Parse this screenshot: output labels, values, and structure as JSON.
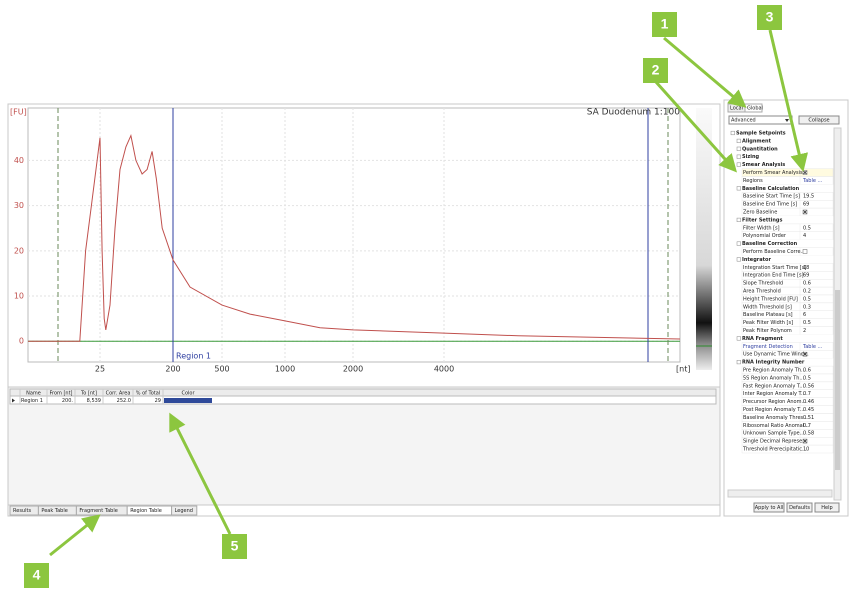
{
  "chart": {
    "type": "line",
    "title": "SA Duodenum 1:100",
    "ylabel": "[FU]",
    "xlabel": "[nt]",
    "annotation": "Region 1",
    "x": [
      0,
      18,
      20,
      22,
      25,
      30,
      35,
      39,
      49,
      61,
      73,
      87,
      99,
      111,
      126,
      138,
      150,
      160,
      174,
      200,
      304,
      500,
      722,
      1000,
      1515,
      2000,
      4000,
      6000,
      10380
    ],
    "values": [
      0,
      0,
      20,
      30,
      45,
      20,
      5,
      2.5,
      8,
      25,
      38,
      43,
      45.5,
      40,
      37,
      38,
      42,
      36,
      25,
      18,
      12,
      8,
      6,
      4.5,
      3,
      2.5,
      1.8,
      1.2,
      0.5
    ],
    "color": "#c0504d",
    "xlim": [
      0,
      10380
    ],
    "xticks": [
      25,
      200,
      500,
      1000,
      2000,
      4000
    ],
    "ylim": [
      -4.6,
      51.6
    ],
    "yticks": [
      0,
      10,
      20,
      30,
      40
    ],
    "grid": true
  },
  "region_table": {
    "columns": [
      "Name",
      "From [nt]",
      "To [nt]",
      "Corr. Area",
      "% of Total",
      "Color"
    ],
    "rows": [
      [
        "Region 1",
        "200.",
        "8,539",
        "252.0",
        "29"
      ]
    ],
    "row_color": "#2f4a9a"
  },
  "tabs": [
    "Results",
    "Peak Table",
    "Fragment Table",
    "Region Table",
    "Legend"
  ],
  "panel": {
    "tabs": [
      "Local",
      "Global"
    ],
    "dropdown": "Advanced",
    "collapse": "Collapse",
    "rows": [
      {
        "label": "Sample Setpoints",
        "heading": true
      },
      {
        "label": "Alignment",
        "heading": true
      },
      {
        "label": "Quantitation",
        "heading": true
      },
      {
        "label": "Sizing",
        "heading": true
      },
      {
        "label": "Smear Analysis",
        "heading": true
      },
      {
        "label": "Perform Smear Analysis",
        "checked": true
      },
      {
        "label": "Regions",
        "value": "Table ..."
      },
      {
        "label": "Baseline Calculation",
        "heading": true
      },
      {
        "label": "Baseline Start Time [s]",
        "value": "19.5"
      },
      {
        "label": "Baseline End Time [s]",
        "value": "69"
      },
      {
        "label": "Zero Baseline",
        "checked": true
      },
      {
        "label": "Filter Settings",
        "heading": true
      },
      {
        "label": "Filter Width [s]",
        "value": "0.5"
      },
      {
        "label": "Polynomial Order",
        "value": "4"
      },
      {
        "label": "Baseline Correction",
        "heading": true
      },
      {
        "label": "Perform Baseline Corre...",
        "checked": false
      },
      {
        "label": "Integrator",
        "heading": true
      },
      {
        "label": "Integration Start Time [s]",
        "value": "18"
      },
      {
        "label": "Integration End Time [s]",
        "value": "69"
      },
      {
        "label": "Slope Threshold",
        "value": "0.6"
      },
      {
        "label": "Area Threshold",
        "value": "0.2"
      },
      {
        "label": "Height Threshold [FU]",
        "value": "0.5"
      },
      {
        "label": "Width Threshold [s]",
        "value": "0.3"
      },
      {
        "label": "Baseline Plateau [s]",
        "value": "6"
      },
      {
        "label": "Peak Filter Width [s]",
        "value": "0.5"
      },
      {
        "label": "Peak Filter Polynom",
        "value": "2"
      },
      {
        "label": "RNA Fragment",
        "heading": true
      },
      {
        "label": "Fragment Detection",
        "value": "Table ..."
      },
      {
        "label": "Use Dynamic Time Wind...",
        "checked": true
      },
      {
        "label": "RNA Integrity Number",
        "heading": true
      },
      {
        "label": "Pre Region Anomaly Th...",
        "value": "0.6"
      },
      {
        "label": "5S Region Anomaly Th...",
        "value": "0.5"
      },
      {
        "label": "Fast Region Anomaly T...",
        "value": "0.56"
      },
      {
        "label": "Inter Region Anomaly T...",
        "value": "0.7"
      },
      {
        "label": "Precursor Region Anom...",
        "value": "0.46"
      },
      {
        "label": "Post Region Anomaly T...",
        "value": "0.45"
      },
      {
        "label": "Baseline Anomaly Thres...",
        "value": "0.51"
      },
      {
        "label": "Ribosomal Ratio Anomal...",
        "value": "0.7"
      },
      {
        "label": "Unknown Sample Type...",
        "value": "0.58"
      },
      {
        "label": "Single Decimal Represe...",
        "checked": true
      },
      {
        "label": "Threshold Prerecipitatic...",
        "value": "10"
      }
    ],
    "buttons": [
      "Apply to All",
      "Defaults",
      "Help"
    ]
  },
  "callouts": [
    "1",
    "2",
    "3",
    "4",
    "5"
  ]
}
